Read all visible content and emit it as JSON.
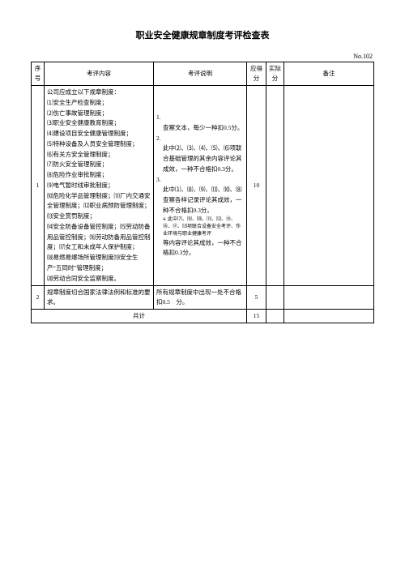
{
  "title": "职业安全健康规章制度考评检查表",
  "docNo": "No.102",
  "header": {
    "seq": "序号",
    "item": "考评内容",
    "criteria": "考评说明",
    "dueScore": "应得分",
    "actScore": "实际分",
    "notes": "备注"
  },
  "row1": {
    "seq": "1",
    "intro": "公司应成立以下规章制度：",
    "items": [
      "⑴安全生产检查制度；",
      "⑵伤亡事故管理制度；",
      "⑶职业安全健康教育制度；",
      "⑷建设项目安全健康管理制度；",
      "⑸特种设备及人员安全管理制度；",
      "⑹有关方安全管理制度；",
      "⑺防火安全管理制度；",
      "⑻危险作业审批制度；",
      "⑼电气暂时线审批制度；",
      "⑽危险化学品管理制度；⑾厂内交通安全管理制度；⑿职业病预防管理制度；⒀安全赏罚制度；",
      "⒁安全防备设备管控制度；⒂劳动防备用品管控制度；⒃劳动防备用品管控制度；⒄女工和未成年人保护制度；",
      "⒅易燃易爆场所管理制度⒆安全生产“五同时”管理制度；",
      "⒇劳动合同安全监察制度。"
    ],
    "criteria": [
      {
        "n": "1.",
        "t": "查察文本，每少一种扣0.5分。"
      },
      {
        "n": "2.",
        "t": "此中⑵、⑶、⑷、⑸、⑹项联合基础管理的其余内容评论其成效，一种不合格扣0.3分。"
      },
      {
        "n": "3.",
        "t": "此中⑴、⑻、⑼、⒀、⑽、⑻查察各样记录评论其成效，一种不合格扣0.3分。"
      }
    ],
    "smallNote": "4. 此中⑺、⑼、⑽、⑾、⑿、⑮、⑯、⑰、⒀项联合设备安全考评、作业环境与职业健康考评",
    "tail": "等内容评论其成效，一种不合格扣0.3分。",
    "dueScore": "10",
    "actScore": ""
  },
  "row2": {
    "seq": "2",
    "item": "规章制度切合国家法律法例和标准的要求。",
    "criteria": "所有规章制度中出现一处不合格扣0.5　分。",
    "dueScore": "5",
    "actScore": ""
  },
  "total": {
    "label": "共计",
    "dueScore": "15",
    "actScore": ""
  }
}
